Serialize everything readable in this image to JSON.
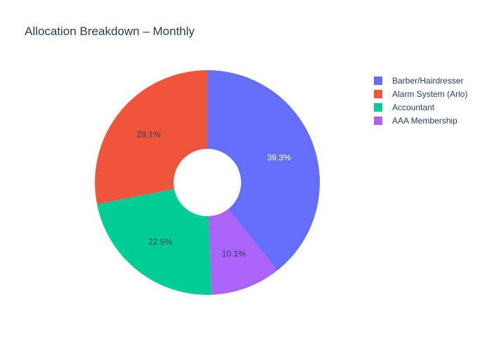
{
  "chart_data": {
    "type": "pie",
    "title": "Allocation Breakdown – Monthly",
    "hole": true,
    "legend_position": "top-right",
    "slices": [
      {
        "label": "Barber/Hairdresser",
        "value": 39.3,
        "display": "39.3%",
        "color": "#636efa",
        "text_color": "#ffffff"
      },
      {
        "label": "AAA Membership",
        "value": 10.1,
        "display": "10.1%",
        "color": "#ab63fa",
        "text_color": "#2a3f5f"
      },
      {
        "label": "Accountant",
        "value": 22.5,
        "display": "22.5%",
        "color": "#00cc96",
        "text_color": "#2a3f5f"
      },
      {
        "label": "Alarm System (Arlo)",
        "value": 28.1,
        "display": "28.1%",
        "color": "#ef553b",
        "text_color": "#2a3f5f"
      }
    ],
    "legend": [
      {
        "label": "Barber/Hairdresser",
        "color": "#636efa"
      },
      {
        "label": "Alarm System (Arlo)",
        "color": "#ef553b"
      },
      {
        "label": "Accountant",
        "color": "#00cc96"
      },
      {
        "label": "AAA Membership",
        "color": "#ab63fa"
      }
    ]
  }
}
